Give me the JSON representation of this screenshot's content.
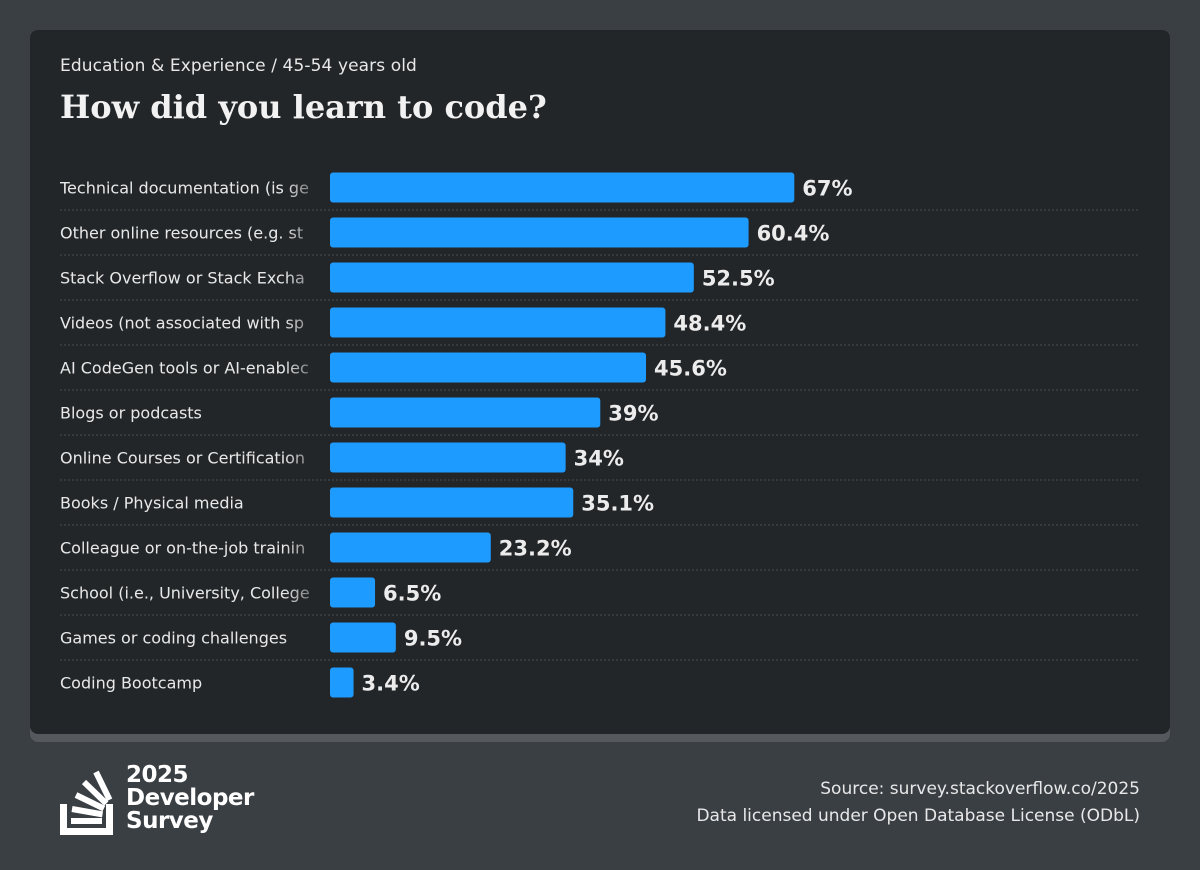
{
  "header": {
    "subtitle": "Education & Experience / 45-54 years old",
    "title": "How did you learn to code?"
  },
  "colors": {
    "bar": "#1e9bff",
    "card_bg": "#232629",
    "page_bg": "#3a3f44",
    "text": "#e8e8e8"
  },
  "chart_data": {
    "type": "bar",
    "orientation": "horizontal",
    "title": "How did you learn to code?",
    "subtitle": "Education & Experience / 45-54 years old",
    "categories": [
      "Technical documentation (is ge",
      "Other online resources (e.g. st",
      "Stack Overflow or Stack Excha",
      "Videos (not associated with sp",
      "AI CodeGen tools or AI-enablec",
      "Blogs or podcasts",
      "Online Courses or Certification",
      "Books / Physical media",
      "Colleague or on-the-job trainin",
      "School (i.e., University, College",
      "Games or coding challenges",
      "Coding Bootcamp"
    ],
    "values": [
      67,
      60.4,
      52.5,
      48.4,
      45.6,
      39,
      34,
      35.1,
      23.2,
      6.5,
      9.5,
      3.4
    ],
    "value_labels": [
      "67%",
      "60.4%",
      "52.5%",
      "48.4%",
      "45.6%",
      "39%",
      "34%",
      "35.1%",
      "23.2%",
      "6.5%",
      "9.5%",
      "3.4%"
    ],
    "unit": "%",
    "xlim": [
      0,
      100
    ],
    "grid": false,
    "legend": "none"
  },
  "footer": {
    "logo_lines": [
      "2025",
      "Developer",
      "Survey"
    ],
    "logo_icon": "stack-overflow-icon",
    "source_line": "Source: survey.stackoverflow.co/2025",
    "license_line": "Data licensed under Open Database License (ODbL)"
  }
}
